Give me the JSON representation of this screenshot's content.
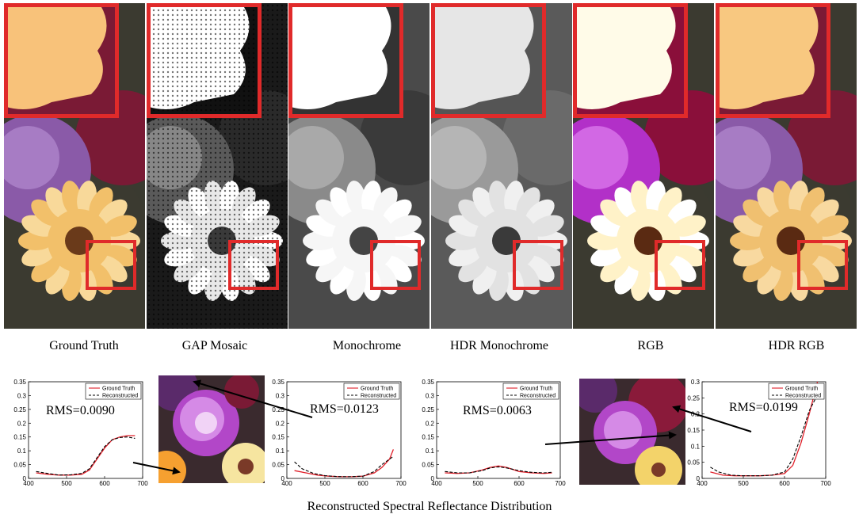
{
  "panels": [
    {
      "label": "Ground Truth",
      "style": "color"
    },
    {
      "label": "GAP Mosaic",
      "style": "mosaic"
    },
    {
      "label": "Monochrome",
      "style": "mono"
    },
    {
      "label": "HDR Monochrome",
      "style": "hdrmono"
    },
    {
      "label": "RGB",
      "style": "rgb"
    },
    {
      "label": "HDR RGB",
      "style": "hdrrgb"
    }
  ],
  "colors": {
    "highlight_box": "#e02a2a",
    "ground_truth_line": "#e0202a",
    "reconstructed_line": "#000000"
  },
  "bottom_caption": "Reconstructed Spectral Reflectance Distribution",
  "chart_data": [
    {
      "type": "line",
      "xlim": [
        400,
        700
      ],
      "ylim": [
        0,
        0.35
      ],
      "xticks": [
        "400",
        "500",
        "600",
        "700"
      ],
      "yticks": [
        "0",
        "0.05",
        "0.1",
        "0.15",
        "0.2",
        "0.25",
        "0.3",
        "0.35"
      ],
      "annotation": "RMS=0.0090",
      "legend": [
        "Ground Truth",
        "Reconstructed"
      ],
      "legend_position": "top-right",
      "series": [
        {
          "name": "Ground Truth",
          "x": [
            420,
            450,
            480,
            510,
            540,
            560,
            580,
            600,
            620,
            640,
            660,
            680
          ],
          "y": [
            0.02,
            0.015,
            0.012,
            0.012,
            0.015,
            0.03,
            0.07,
            0.11,
            0.14,
            0.15,
            0.155,
            0.155
          ]
        },
        {
          "name": "Reconstructed",
          "x": [
            420,
            450,
            480,
            510,
            540,
            560,
            580,
            600,
            620,
            640,
            660,
            680
          ],
          "y": [
            0.025,
            0.018,
            0.012,
            0.013,
            0.018,
            0.035,
            0.075,
            0.115,
            0.14,
            0.148,
            0.15,
            0.145
          ]
        }
      ]
    },
    {
      "type": "line",
      "xlim": [
        400,
        700
      ],
      "ylim": [
        0,
        0.35
      ],
      "xticks": [
        "400",
        "500",
        "600",
        "700"
      ],
      "yticks": [
        "0",
        "0.05",
        "0.1",
        "0.15",
        "0.2",
        "0.25",
        "0.3",
        "0.35"
      ],
      "annotation": "RMS=0.0123",
      "legend": [
        "Ground Truth",
        "Reconstructed"
      ],
      "legend_position": "top-right",
      "series": [
        {
          "name": "Ground Truth",
          "x": [
            420,
            450,
            480,
            510,
            540,
            570,
            600,
            630,
            650,
            670,
            680
          ],
          "y": [
            0.028,
            0.02,
            0.012,
            0.008,
            0.006,
            0.006,
            0.008,
            0.02,
            0.04,
            0.07,
            0.105
          ]
        },
        {
          "name": "Reconstructed",
          "x": [
            420,
            440,
            470,
            500,
            530,
            560,
            600,
            630,
            650,
            670,
            680
          ],
          "y": [
            0.06,
            0.035,
            0.018,
            0.01,
            0.007,
            0.006,
            0.008,
            0.025,
            0.05,
            0.07,
            0.08
          ]
        }
      ]
    },
    {
      "type": "line",
      "xlim": [
        400,
        700
      ],
      "ylim": [
        0,
        0.35
      ],
      "xticks": [
        "400",
        "500",
        "600",
        "700"
      ],
      "yticks": [
        "0",
        "0.05",
        "0.1",
        "0.15",
        "0.2",
        "0.25",
        "0.3",
        "0.35"
      ],
      "annotation": "RMS=0.0063",
      "legend": [
        "Ground Truth",
        "Reconstructed"
      ],
      "legend_position": "top-right",
      "series": [
        {
          "name": "Ground Truth",
          "x": [
            420,
            450,
            480,
            510,
            530,
            550,
            570,
            600,
            630,
            660,
            680
          ],
          "y": [
            0.02,
            0.018,
            0.02,
            0.03,
            0.04,
            0.045,
            0.04,
            0.025,
            0.02,
            0.018,
            0.02
          ]
        },
        {
          "name": "Reconstructed",
          "x": [
            420,
            450,
            480,
            510,
            530,
            550,
            570,
            600,
            630,
            660,
            680
          ],
          "y": [
            0.025,
            0.02,
            0.02,
            0.028,
            0.038,
            0.042,
            0.038,
            0.028,
            0.022,
            0.02,
            0.022
          ]
        }
      ]
    },
    {
      "type": "line",
      "xlim": [
        400,
        700
      ],
      "ylim": [
        0,
        0.3
      ],
      "xticks": [
        "400",
        "500",
        "600",
        "700"
      ],
      "yticks": [
        "0",
        "0.05",
        "0.1",
        "0.15",
        "0.2",
        "0.25",
        "0.3"
      ],
      "annotation": "RMS=0.0199",
      "legend": [
        "Ground Truth",
        "Reconstructed"
      ],
      "legend_position": "top-right",
      "series": [
        {
          "name": "Ground Truth",
          "x": [
            420,
            450,
            480,
            510,
            540,
            570,
            600,
            620,
            640,
            660,
            680
          ],
          "y": [
            0.02,
            0.01,
            0.008,
            0.008,
            0.008,
            0.01,
            0.015,
            0.04,
            0.11,
            0.2,
            0.3
          ]
        },
        {
          "name": "Reconstructed",
          "x": [
            420,
            440,
            470,
            500,
            540,
            570,
            600,
            620,
            640,
            660,
            680
          ],
          "y": [
            0.035,
            0.02,
            0.01,
            0.008,
            0.008,
            0.01,
            0.02,
            0.06,
            0.13,
            0.21,
            0.26
          ]
        }
      ]
    }
  ]
}
